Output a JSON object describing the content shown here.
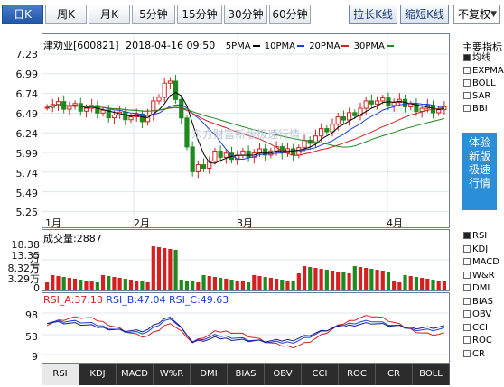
{
  "toolbar": {
    "periods": [
      "日K",
      "周K",
      "月K",
      "5分钟",
      "15分钟",
      "30分钟",
      "60分钟"
    ],
    "active_period": "日K",
    "stretch_label": "拉长K线",
    "shrink_label": "缩短K线",
    "adjust_option": "不复权"
  },
  "stock": {
    "name": "津劝业",
    "code": "[600821]",
    "datetime": "2018-04-16 09:50"
  },
  "ma_legend": [
    {
      "label": "5PMA",
      "color": "#000000"
    },
    {
      "label": "10PMA",
      "color": "#1a3fd6"
    },
    {
      "label": "20PMA",
      "color": "#d42020"
    },
    {
      "label": "30PMA",
      "color": "#1f8a1f"
    }
  ],
  "price_axis": [
    "7.23",
    "6.99",
    "6.74",
    "6.49",
    "6.24",
    "5.99",
    "5.74",
    "5.49",
    "5.25"
  ],
  "month_labels": [
    "1月",
    "2月",
    "3月",
    "4月"
  ],
  "volume": {
    "title": "成交量:2887",
    "axis": [
      "18.38万",
      "13.35万",
      "8.32万",
      "3.29万",
      "0"
    ]
  },
  "rsi": {
    "title_a": "RSI_A:37.18",
    "title_b": "RSI_B:47.04",
    "title_c": "RSI_C:49.63",
    "axis": [
      "98",
      "53",
      "9"
    ]
  },
  "side": {
    "title": "主要指标",
    "main_indicators": [
      {
        "label": "均线",
        "on": true
      },
      {
        "label": "EXPMA",
        "on": false
      },
      {
        "label": "BOLL",
        "on": false
      },
      {
        "label": "SAR",
        "on": false
      },
      {
        "label": "BBI",
        "on": false
      }
    ],
    "promo_lines": [
      "体验",
      "新版",
      "极速",
      "行情"
    ],
    "sub_indicators": [
      {
        "label": "RSI",
        "on": true
      },
      {
        "label": "KDJ",
        "on": false
      },
      {
        "label": "MACD",
        "on": false
      },
      {
        "label": "W&R",
        "on": false
      },
      {
        "label": "DMI",
        "on": false
      },
      {
        "label": "BIAS",
        "on": false
      },
      {
        "label": "OBV",
        "on": false
      },
      {
        "label": "CCI",
        "on": false
      },
      {
        "label": "ROC",
        "on": false
      },
      {
        "label": "CR",
        "on": false
      }
    ]
  },
  "bottom_tabs": [
    "RSI",
    "KDJ",
    "MACD",
    "W%R",
    "DMI",
    "BIAS",
    "OBV",
    "CCI",
    "ROC",
    "CR",
    "BOLL"
  ],
  "active_bottom_tab": "RSI",
  "watermark": "东方财富新版极速行情",
  "colors": {
    "up": "#d42020",
    "down": "#1f8a1f",
    "ma5": "#000000",
    "ma10": "#1a3fd6",
    "ma20": "#d42020",
    "ma30": "#1f8a1f",
    "accent": "#2b8fd8"
  }
}
